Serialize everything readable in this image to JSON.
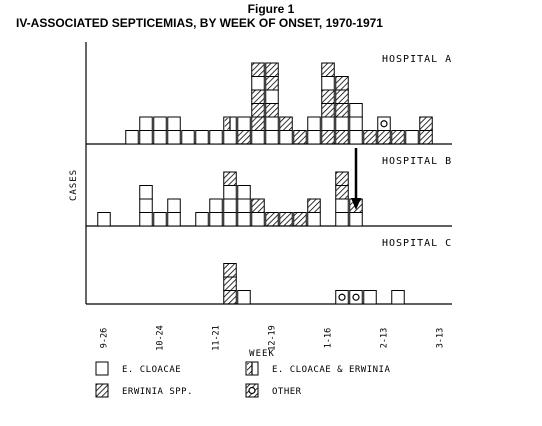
{
  "figure": {
    "label": "Figure 1",
    "title": "IV-ASSOCIATED SEPTICEMIAS, BY WEEK OF ONSET, 1970-1971"
  },
  "chart_data": {
    "type": "bar",
    "stacked": true,
    "title": "IV-ASSOCIATED SEPTICEMIAS, BY WEEK OF ONSET, 1970-1971",
    "xlabel": "WEEK",
    "ylabel": "CASES",
    "x_tick_labels": [
      "9-26",
      "10-24",
      "11-21",
      "12-19",
      "1-16",
      "2-13",
      "3-13"
    ],
    "x_tick_weeks": [
      0,
      4,
      8,
      12,
      16,
      20,
      24
    ],
    "xlim": [
      -1,
      26
    ],
    "panels": [
      {
        "name": "HOSPITAL A",
        "columns": [
          {
            "week": 2,
            "cases": [
              "E"
            ]
          },
          {
            "week": 3,
            "cases": [
              "E",
              "E"
            ]
          },
          {
            "week": 4,
            "cases": [
              "E",
              "E"
            ]
          },
          {
            "week": 5,
            "cases": [
              "E",
              "E"
            ]
          },
          {
            "week": 6,
            "cases": [
              "E"
            ]
          },
          {
            "week": 7,
            "cases": [
              "E"
            ]
          },
          {
            "week": 8,
            "cases": [
              "E"
            ]
          },
          {
            "week": 9,
            "cases": [
              "E",
              "M"
            ]
          },
          {
            "week": 10,
            "cases": [
              "W",
              "E"
            ]
          },
          {
            "week": 11,
            "cases": [
              "E",
              "W",
              "W",
              "W",
              "E",
              "W"
            ]
          },
          {
            "week": 12,
            "cases": [
              "E",
              "E",
              "W",
              "E",
              "W",
              "W"
            ]
          },
          {
            "week": 13,
            "cases": [
              "E",
              "W"
            ]
          },
          {
            "week": 14,
            "cases": [
              "W"
            ]
          },
          {
            "week": 15,
            "cases": [
              "E",
              "E"
            ]
          },
          {
            "week": 16,
            "cases": [
              "W",
              "E",
              "W",
              "W",
              "E",
              "W"
            ]
          },
          {
            "week": 17,
            "cases": [
              "W",
              "E",
              "W",
              "W",
              "W"
            ]
          },
          {
            "week": 18,
            "cases": [
              "E",
              "E",
              "E"
            ]
          },
          {
            "week": 19,
            "cases": [
              "W"
            ]
          },
          {
            "week": 20,
            "cases": [
              "W",
              "O"
            ]
          },
          {
            "week": 21,
            "cases": [
              "W"
            ]
          },
          {
            "week": 22,
            "cases": [
              "E"
            ]
          },
          {
            "week": 23,
            "cases": [
              "W",
              "W"
            ]
          }
        ]
      },
      {
        "name": "HOSPITAL B",
        "columns": [
          {
            "week": 0,
            "cases": [
              "E"
            ]
          },
          {
            "week": 3,
            "cases": [
              "E",
              "E",
              "E"
            ]
          },
          {
            "week": 4,
            "cases": [
              "E"
            ]
          },
          {
            "week": 5,
            "cases": [
              "E",
              "E"
            ]
          },
          {
            "week": 7,
            "cases": [
              "E"
            ]
          },
          {
            "week": 8,
            "cases": [
              "E",
              "E"
            ]
          },
          {
            "week": 9,
            "cases": [
              "E",
              "E",
              "E",
              "W"
            ]
          },
          {
            "week": 10,
            "cases": [
              "E",
              "E",
              "E"
            ]
          },
          {
            "week": 11,
            "cases": [
              "E",
              "W"
            ]
          },
          {
            "week": 12,
            "cases": [
              "W"
            ]
          },
          {
            "week": 13,
            "cases": [
              "W"
            ]
          },
          {
            "week": 14,
            "cases": [
              "W"
            ]
          },
          {
            "week": 15,
            "cases": [
              "E",
              "W"
            ]
          },
          {
            "week": 17,
            "cases": [
              "E",
              "E",
              "W",
              "W"
            ]
          },
          {
            "week": 18,
            "cases": [
              "E",
              "W"
            ]
          }
        ]
      },
      {
        "name": "HOSPITAL C",
        "columns": [
          {
            "week": 9,
            "cases": [
              "W",
              "W",
              "W"
            ]
          },
          {
            "week": 10,
            "cases": [
              "E"
            ]
          },
          {
            "week": 17,
            "cases": [
              "O"
            ]
          },
          {
            "week": 18,
            "cases": [
              "O"
            ]
          },
          {
            "week": 19,
            "cases": [
              "E"
            ]
          },
          {
            "week": 21,
            "cases": [
              "E"
            ]
          }
        ]
      }
    ],
    "arrow": {
      "panel": "HOSPITAL B",
      "week": 18,
      "direction": "down"
    },
    "legend": [
      {
        "code": "E",
        "label": "E. CLOACAE",
        "pattern": "empty"
      },
      {
        "code": "M",
        "label": "E. CLOACAE  &  ERWINIA",
        "pattern": "hatch-left-half"
      },
      {
        "code": "W",
        "label": "ERWINIA  SPP.",
        "pattern": "hatch"
      },
      {
        "code": "O",
        "label": "OTHER",
        "pattern": "circle"
      }
    ],
    "legend_placement": "bottom"
  }
}
